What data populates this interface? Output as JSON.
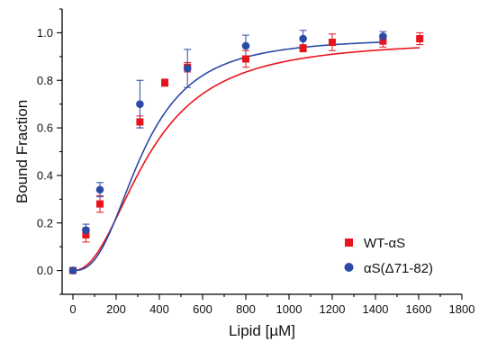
{
  "chart_data": {
    "type": "scatter",
    "xlabel": "Lipid [µM]",
    "ylabel": "Bound Fraction",
    "xlim": [
      -50,
      1800
    ],
    "ylim": [
      -0.1,
      1.1
    ],
    "x_ticks": [
      0,
      200,
      400,
      600,
      800,
      1000,
      1200,
      1400,
      1600,
      1800
    ],
    "y_ticks": [
      0.0,
      0.2,
      0.4,
      0.6,
      0.8,
      1.0
    ],
    "x_tick_labels": [
      "0",
      "200",
      "400",
      "600",
      "800",
      "1000",
      "1200",
      "1400",
      "1600",
      "1800"
    ],
    "y_tick_labels": [
      "0.0",
      "0.2",
      "0.4",
      "0.6",
      "0.8",
      "1.0"
    ],
    "legend_position": "bottom-right",
    "series": [
      {
        "name": "WT-αS",
        "marker": "square",
        "color": "#e8141c",
        "points": [
          {
            "x": 0,
            "y": 0.0,
            "err": 0.0
          },
          {
            "x": 60,
            "y": 0.15,
            "err": 0.03
          },
          {
            "x": 125,
            "y": 0.28,
            "err": 0.035
          },
          {
            "x": 310,
            "y": 0.625,
            "err": 0.025
          },
          {
            "x": 425,
            "y": 0.79,
            "err": 0.015
          },
          {
            "x": 530,
            "y": 0.855,
            "err": 0.02
          },
          {
            "x": 800,
            "y": 0.89,
            "err": 0.035
          },
          {
            "x": 1065,
            "y": 0.935,
            "err": 0.015
          },
          {
            "x": 1200,
            "y": 0.96,
            "err": 0.035
          },
          {
            "x": 1435,
            "y": 0.965,
            "err": 0.025
          },
          {
            "x": 1605,
            "y": 0.975,
            "err": 0.025
          }
        ],
        "fit": {
          "bmax": 0.97,
          "kd": 350,
          "n": 2.2
        }
      },
      {
        "name": "αS(Δ71-82)",
        "marker": "circle",
        "color": "#2b4aa6",
        "points": [
          {
            "x": 0,
            "y": 0.0,
            "err": 0.0
          },
          {
            "x": 60,
            "y": 0.17,
            "err": 0.025
          },
          {
            "x": 125,
            "y": 0.34,
            "err": 0.03
          },
          {
            "x": 310,
            "y": 0.7,
            "err": 0.1
          },
          {
            "x": 530,
            "y": 0.85,
            "err": 0.08
          },
          {
            "x": 800,
            "y": 0.945,
            "err": 0.045
          },
          {
            "x": 1065,
            "y": 0.975,
            "err": 0.035
          },
          {
            "x": 1435,
            "y": 0.985,
            "err": 0.02
          }
        ],
        "fit": {
          "bmax": 0.98,
          "kd": 320,
          "n": 2.6
        }
      }
    ]
  }
}
